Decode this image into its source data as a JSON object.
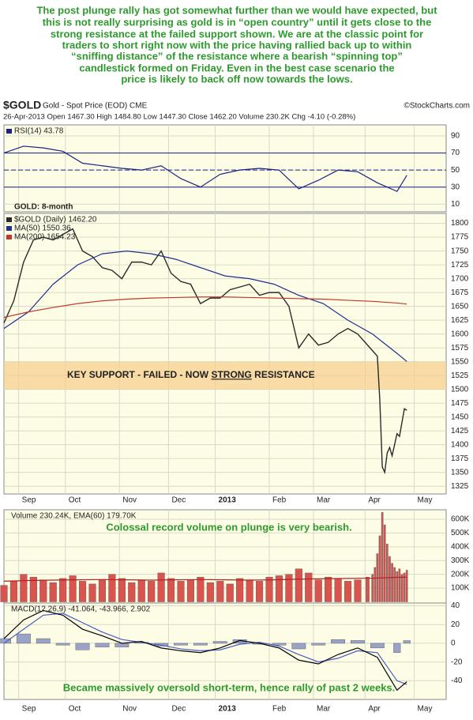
{
  "commentary": [
    "The post plunge rally has got somewhat further than we would have expected, but",
    "this is not really surprising as gold is in “open country” until it gets close to the",
    "strong resistance at the failed support shown. We are at the classic point for",
    "traders to short right now with the price having rallied back up to within",
    "“sniffing distance” of the resistance where a bearish “spinning top”",
    "candlestick formed on Friday. Even in the best case scenario the",
    "price is likely to back off now towards the lows."
  ],
  "header": {
    "symbol": "$GOLD",
    "name": "Gold - Spot Price (EOD) CME",
    "source": "©StockCharts.com",
    "quote": "26-Apr-2013   Open 1467.30  High 1484.80  Low 1447.30  Close 1462.20  Volume 230.2K  Chg -4.10 (-0.28%)"
  },
  "chart_data": [
    {
      "type": "line",
      "xlim": [
        0,
        180
      ],
      "ylim": [
        1,
        103
      ],
      "yticks": [
        10,
        30,
        50,
        70,
        90
      ],
      "hlines": [
        30,
        70
      ],
      "dashed_hlines": [
        50
      ],
      "series": [
        {
          "name": "RSI(14) 43.78",
          "color": "#1a237e",
          "x": [
            0,
            8,
            16,
            24,
            32,
            40,
            48,
            56,
            64,
            72,
            80,
            88,
            96,
            104,
            112,
            120,
            128,
            136,
            144,
            152,
            160,
            164
          ],
          "values": [
            70,
            78,
            76,
            72,
            58,
            55,
            52,
            50,
            55,
            40,
            30,
            45,
            50,
            52,
            50,
            28,
            38,
            50,
            48,
            35,
            25,
            43.78
          ]
        }
      ]
    },
    {
      "type": "line",
      "title": "GOLD: 8-month",
      "xlim": [
        0,
        180
      ],
      "ylim": [
        1311,
        1818
      ],
      "yticks": [
        1325,
        1350,
        1375,
        1400,
        1425,
        1450,
        1475,
        1500,
        1525,
        1550,
        1575,
        1600,
        1625,
        1650,
        1675,
        1700,
        1725,
        1750,
        1775,
        1800
      ],
      "xticks": [
        {
          "value": 6,
          "label": "Sep"
        },
        {
          "value": 25,
          "label": "Oct"
        },
        {
          "value": 47,
          "label": "Nov"
        },
        {
          "value": 67,
          "label": "Dec"
        },
        {
          "value": 86,
          "label": "2013"
        },
        {
          "value": 108,
          "label": "Feb"
        },
        {
          "value": 126,
          "label": "Mar"
        },
        {
          "value": 147,
          "label": "Apr"
        },
        {
          "value": 167,
          "label": "May"
        }
      ],
      "band": [
        1500,
        1550
      ],
      "band_color": "#f7cf8f",
      "band_text": [
        "KEY SUPPORT - FAILED - NOW ",
        "STRONG",
        " RESISTANCE"
      ],
      "series": [
        {
          "name": "$GOLD (Daily) 1462.20",
          "color": "#2a2a2a",
          "x": [
            0,
            4,
            8,
            12,
            16,
            20,
            24,
            28,
            32,
            36,
            40,
            44,
            48,
            52,
            56,
            60,
            64,
            68,
            72,
            76,
            80,
            84,
            88,
            92,
            96,
            100,
            104,
            108,
            112,
            116,
            120,
            124,
            128,
            132,
            136,
            140,
            144,
            148,
            150,
            152,
            153,
            154,
            155,
            156,
            157,
            158,
            159,
            160,
            161,
            162,
            163,
            164
          ],
          "values": [
            1620,
            1660,
            1730,
            1770,
            1775,
            1770,
            1780,
            1790,
            1750,
            1740,
            1720,
            1715,
            1700,
            1730,
            1730,
            1725,
            1750,
            1710,
            1695,
            1690,
            1655,
            1665,
            1665,
            1680,
            1685,
            1690,
            1670,
            1675,
            1675,
            1650,
            1575,
            1600,
            1580,
            1585,
            1600,
            1610,
            1600,
            1580,
            1570,
            1560,
            1480,
            1360,
            1350,
            1385,
            1395,
            1380,
            1400,
            1420,
            1415,
            1440,
            1465,
            1462.2
          ]
        },
        {
          "name": "MA(50) 1550.36",
          "color": "#1f2f8f",
          "x": [
            0,
            10,
            20,
            30,
            40,
            50,
            60,
            70,
            80,
            90,
            100,
            110,
            120,
            130,
            140,
            150,
            160,
            164
          ],
          "values": [
            1610,
            1640,
            1690,
            1725,
            1745,
            1750,
            1745,
            1735,
            1720,
            1705,
            1700,
            1690,
            1670,
            1655,
            1625,
            1600,
            1565,
            1550.36
          ]
        },
        {
          "name": "MA(200) 1654.23",
          "color": "#c0392b",
          "x": [
            0,
            10,
            20,
            30,
            40,
            50,
            60,
            70,
            80,
            90,
            100,
            110,
            120,
            130,
            140,
            150,
            160,
            164
          ],
          "values": [
            1630,
            1640,
            1648,
            1655,
            1660,
            1663,
            1665,
            1666,
            1667,
            1667,
            1666,
            1665,
            1664,
            1663,
            1661,
            1659,
            1656,
            1654.23
          ]
        }
      ]
    },
    {
      "type": "bar",
      "label": "Volume 230.24K, EMA(60) 179.70K",
      "annotation": "Colossal record volume on plunge  is very bearish.",
      "xlim": [
        0,
        180
      ],
      "ylim": [
        -20000,
        669000
      ],
      "yticks": [
        {
          "value": 100000,
          "label": "100K"
        },
        {
          "value": 200000,
          "label": "200K"
        },
        {
          "value": 300000,
          "label": "300K"
        },
        {
          "value": 400000,
          "label": "400K"
        },
        {
          "value": 500000,
          "label": "500K"
        },
        {
          "value": 600000,
          "label": "600K"
        }
      ],
      "series": [
        {
          "name": "Volume",
          "kind": "bar",
          "color": "#d9534f",
          "x": [
            0,
            4,
            8,
            12,
            16,
            20,
            24,
            28,
            32,
            36,
            40,
            44,
            48,
            52,
            56,
            60,
            64,
            68,
            72,
            76,
            80,
            84,
            88,
            92,
            96,
            100,
            104,
            108,
            112,
            116,
            120,
            124,
            128,
            132,
            136,
            140,
            144,
            148,
            150,
            151,
            152,
            153,
            154,
            155,
            156,
            157,
            158,
            159,
            160,
            161,
            162,
            163,
            164
          ],
          "values": [
            120000,
            150000,
            200000,
            180000,
            160000,
            140000,
            170000,
            190000,
            150000,
            130000,
            160000,
            200000,
            170000,
            140000,
            160000,
            150000,
            210000,
            170000,
            150000,
            160000,
            180000,
            140000,
            150000,
            130000,
            170000,
            160000,
            150000,
            180000,
            190000,
            200000,
            240000,
            210000,
            160000,
            180000,
            170000,
            150000,
            160000,
            180000,
            200000,
            250000,
            350000,
            480000,
            650000,
            560000,
            420000,
            330000,
            280000,
            250000,
            220000,
            240000,
            200000,
            210000,
            230240
          ]
        },
        {
          "name": "EMA(60)",
          "kind": "line",
          "color": "#b22222",
          "x": [
            0,
            10,
            20,
            30,
            40,
            50,
            60,
            70,
            80,
            90,
            100,
            110,
            120,
            130,
            140,
            150,
            160,
            164
          ],
          "values": [
            150000,
            155000,
            158000,
            160000,
            162000,
            160000,
            158000,
            160000,
            162000,
            160000,
            158000,
            160000,
            165000,
            168000,
            170000,
            172000,
            178000,
            179700
          ]
        }
      ]
    },
    {
      "type": "line",
      "label": "MACD(12,26,9) -41.064, -43.966, 2.902",
      "annotation": "Became massively oversold short-term, hence rally of past 2 weeks.",
      "xlim": [
        0,
        180
      ],
      "ylim": [
        -60,
        43
      ],
      "yticks": [
        -40,
        -20,
        0,
        20,
        40
      ],
      "xticks": [
        {
          "value": 6,
          "label": "Sep"
        },
        {
          "value": 25,
          "label": "Oct"
        },
        {
          "value": 47,
          "label": "Nov"
        },
        {
          "value": 67,
          "label": "Dec"
        },
        {
          "value": 86,
          "label": "2013"
        },
        {
          "value": 108,
          "label": "Feb"
        },
        {
          "value": 126,
          "label": "Mar"
        },
        {
          "value": 147,
          "label": "Apr"
        },
        {
          "value": 167,
          "label": "May"
        }
      ],
      "series": [
        {
          "name": "Histogram",
          "kind": "bar",
          "color": "#9aa3c7",
          "x": [
            0,
            8,
            16,
            24,
            32,
            40,
            48,
            56,
            64,
            72,
            80,
            88,
            96,
            104,
            112,
            120,
            128,
            136,
            144,
            152,
            160,
            164
          ],
          "values": [
            5,
            10,
            5,
            -2,
            -7,
            -4,
            -4,
            1,
            -3,
            -2,
            -2,
            2,
            4,
            -1,
            -2,
            -6,
            -2,
            4,
            3,
            -5,
            -10,
            2.902
          ]
        },
        {
          "name": "Signal",
          "kind": "line",
          "color": "#4b5bbf",
          "x": [
            0,
            8,
            16,
            24,
            32,
            40,
            48,
            56,
            64,
            72,
            80,
            88,
            96,
            104,
            112,
            120,
            128,
            136,
            144,
            152,
            160,
            164
          ],
          "values": [
            0,
            15,
            30,
            32,
            22,
            12,
            4,
            1,
            -2,
            -6,
            -8,
            -7,
            -1,
            1,
            -3,
            -12,
            -20,
            -16,
            -8,
            -10,
            -40,
            -43.966
          ]
        },
        {
          "name": "MACD",
          "kind": "line",
          "color": "#000000",
          "x": [
            0,
            8,
            16,
            24,
            32,
            40,
            48,
            56,
            64,
            72,
            80,
            88,
            96,
            104,
            112,
            120,
            128,
            136,
            144,
            152,
            160,
            164
          ],
          "values": [
            5,
            25,
            35,
            30,
            15,
            8,
            0,
            2,
            -5,
            -8,
            -10,
            -5,
            3,
            0,
            -5,
            -18,
            -22,
            -12,
            -5,
            -15,
            -50,
            -41.064
          ]
        }
      ]
    }
  ]
}
